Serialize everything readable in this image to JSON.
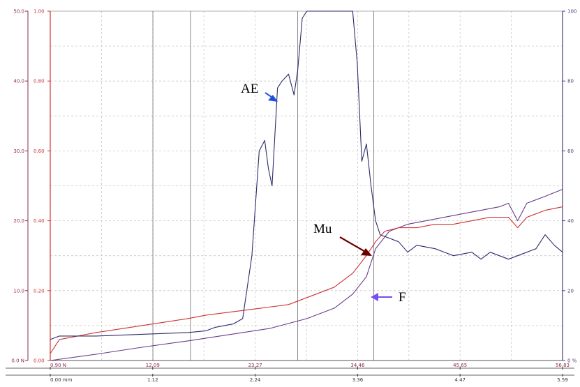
{
  "chart_data": {
    "type": "line",
    "colors": {
      "ae": "#2b2b6b",
      "mu": "#cc3333",
      "f": "#6a3a8c",
      "left_axis": "#8b2a4a",
      "mu_axis": "#cc3333",
      "right_axis": "#4a3a7a",
      "grid": "#c8c8c8",
      "vline": "#8a8a8a",
      "arrow_ae": "#1f4fe0",
      "arrow_mu": "#6b0000",
      "arrow_f": "#7a4cf2"
    },
    "axes": {
      "left_force": {
        "ylim": [
          0,
          50
        ],
        "ticks": [
          "0.0 N",
          "10.0",
          "20.0",
          "30.0",
          "40.0",
          "50.0"
        ]
      },
      "mu": {
        "ylim": [
          0,
          1
        ],
        "ticks": [
          "0.00",
          "0.20",
          "0.40",
          "0.60",
          "0.80",
          "1.00"
        ]
      },
      "right_ae": {
        "ylim": [
          0,
          100
        ],
        "ticks": [
          "0 %",
          "20",
          "40",
          "60",
          "80",
          "100"
        ]
      },
      "x_force": {
        "ticks": [
          "0.90 N",
          "12.09",
          "23.27",
          "34.46",
          "45.65",
          "56.83"
        ]
      },
      "x_distance": {
        "xlim": [
          0,
          5.59
        ],
        "ticks": [
          "0.00 mm",
          "1.12",
          "2.24",
          "3.36",
          "4.47",
          "5.59"
        ]
      }
    },
    "grid": true,
    "vertical_markers_mm": [
      1.12,
      1.53,
      2.7,
      3.53
    ],
    "annotations": [
      {
        "label": "AE",
        "series": "ae"
      },
      {
        "label": "Mu",
        "series": "mu"
      },
      {
        "label": "F",
        "series": "f"
      }
    ],
    "series": [
      {
        "key": "ae",
        "axis": "right_ae",
        "x": [
          0,
          0.1,
          0.5,
          1.0,
          1.5,
          1.7,
          1.8,
          2.0,
          2.1,
          2.2,
          2.28,
          2.34,
          2.38,
          2.42,
          2.48,
          2.53,
          2.6,
          2.66,
          2.7,
          2.75,
          2.8,
          2.9,
          3.0,
          3.1,
          3.2,
          3.3,
          3.35,
          3.4,
          3.45,
          3.5,
          3.55,
          3.6,
          3.7,
          3.8,
          3.9,
          4.0,
          4.2,
          4.4,
          4.6,
          4.7,
          4.8,
          5.0,
          5.2,
          5.3,
          5.4,
          5.5,
          5.59
        ],
        "y": [
          6,
          7,
          7,
          7.5,
          8,
          8.5,
          9.5,
          10.5,
          12,
          30,
          60,
          63,
          55,
          50,
          78,
          80,
          82,
          76,
          83,
          98,
          100,
          100,
          100,
          100,
          100,
          100,
          85,
          57,
          62,
          50,
          40,
          36,
          35,
          34,
          31,
          33,
          32,
          30,
          31,
          29,
          31,
          29,
          31,
          32,
          36,
          33,
          31
        ]
      },
      {
        "key": "mu",
        "axis": "mu",
        "x": [
          0,
          0.1,
          0.3,
          0.5,
          1.0,
          1.5,
          1.7,
          2.0,
          2.3,
          2.6,
          2.9,
          3.1,
          3.3,
          3.45,
          3.55,
          3.65,
          3.8,
          4.0,
          4.2,
          4.4,
          4.6,
          4.8,
          5.0,
          5.1,
          5.2,
          5.4,
          5.59
        ],
        "y": [
          0.02,
          0.06,
          0.07,
          0.08,
          0.1,
          0.12,
          0.13,
          0.14,
          0.15,
          0.16,
          0.19,
          0.21,
          0.25,
          0.3,
          0.34,
          0.37,
          0.38,
          0.38,
          0.39,
          0.39,
          0.4,
          0.41,
          0.41,
          0.38,
          0.41,
          0.43,
          0.44
        ]
      },
      {
        "key": "f",
        "axis": "left_force",
        "x": [
          0,
          0.5,
          1.0,
          1.5,
          2.0,
          2.4,
          2.8,
          3.1,
          3.3,
          3.45,
          3.55,
          3.7,
          3.9,
          4.1,
          4.3,
          4.5,
          4.7,
          4.9,
          5.0,
          5.1,
          5.2,
          5.4,
          5.59
        ],
        "y": [
          0,
          0.9,
          1.9,
          2.8,
          3.8,
          4.6,
          6,
          7.5,
          9.5,
          12,
          16,
          18.5,
          19.5,
          20,
          20.5,
          21,
          21.5,
          22,
          22.5,
          20,
          22.5,
          23.5,
          24.5
        ]
      }
    ]
  }
}
